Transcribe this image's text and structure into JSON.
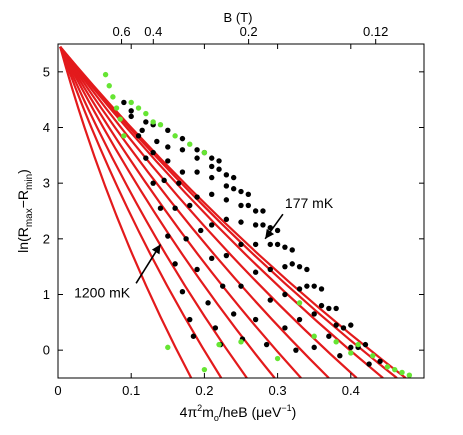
{
  "chart_data": {
    "type": "scatter",
    "xlim": [
      0,
      0.5
    ],
    "ylim": [
      -0.5,
      5.5
    ],
    "xticks": [
      0,
      0.1,
      0.2,
      0.3,
      0.4
    ],
    "xtick_labels": [
      "0",
      "0.1",
      "0.2",
      "0.3",
      "0.4"
    ],
    "yticks": [
      0,
      1,
      2,
      3,
      4,
      5
    ],
    "ytick_labels": [
      "0",
      "1",
      "2",
      "3",
      "4",
      "5"
    ],
    "top_axis_label": "B (T)",
    "top_ticks": [
      {
        "label": "0.6",
        "x": 0.0868
      },
      {
        "label": "0.4",
        "x": 0.1302
      },
      {
        "label": "0.2",
        "x": 0.2604
      },
      {
        "label": "0.12",
        "x": 0.434
      }
    ],
    "xlabel": {
      "pre": "4π",
      "sup1": "2",
      "mid": "m",
      "sub": "o",
      "post": "/heB (μeV",
      "sup2": "−1",
      "close": ")"
    },
    "ylabel": {
      "pre": "ln(R",
      "sub1": "max",
      "mid": "−R",
      "sub2": "min",
      "close": ")"
    },
    "grid": false,
    "origin": [
      0.003,
      5.45
    ],
    "fit_lines": [
      {
        "end": [
          0.182,
          -0.5
        ],
        "color": "#e31a1c"
      },
      {
        "end": [
          0.223,
          -0.5
        ],
        "color": "#e31a1c"
      },
      {
        "end": [
          0.258,
          -0.5
        ],
        "color": "#e31a1c"
      },
      {
        "end": [
          0.296,
          -0.5
        ],
        "color": "#e31a1c"
      },
      {
        "end": [
          0.332,
          -0.5
        ],
        "color": "#e31a1c"
      },
      {
        "end": [
          0.37,
          -0.5
        ],
        "color": "#e31a1c"
      },
      {
        "end": [
          0.408,
          -0.5
        ],
        "color": "#e31a1c"
      },
      {
        "end": [
          0.444,
          -0.5
        ],
        "color": "#e31a1c"
      },
      {
        "end": [
          0.463,
          -0.5
        ],
        "color": "#e31a1c"
      },
      {
        "end": [
          0.475,
          -0.5
        ],
        "color": "#e31a1c"
      }
    ],
    "series": [
      {
        "color": "#000000",
        "points": [
          [
            0.09,
            4.45
          ],
          [
            0.1,
            4.2
          ],
          [
            0.11,
            3.85
          ],
          [
            0.12,
            3.45
          ],
          [
            0.13,
            3.0
          ],
          [
            0.14,
            2.55
          ],
          [
            0.15,
            2.05
          ],
          [
            0.16,
            1.55
          ],
          [
            0.17,
            1.05
          ],
          [
            0.18,
            0.55
          ],
          [
            0.185,
            0.25
          ]
        ]
      },
      {
        "color": "#000000",
        "points": [
          [
            0.1,
            4.3
          ],
          [
            0.115,
            3.95
          ],
          [
            0.13,
            3.55
          ],
          [
            0.145,
            3.05
          ],
          [
            0.16,
            2.55
          ],
          [
            0.175,
            2.0
          ],
          [
            0.19,
            1.45
          ],
          [
            0.205,
            0.85
          ],
          [
            0.215,
            0.4
          ],
          [
            0.222,
            0.1
          ]
        ]
      },
      {
        "color": "#000000",
        "points": [
          [
            0.12,
            4.1
          ],
          [
            0.135,
            3.75
          ],
          [
            0.15,
            3.4
          ],
          [
            0.165,
            3.0
          ],
          [
            0.18,
            2.6
          ],
          [
            0.195,
            2.15
          ],
          [
            0.21,
            1.65
          ],
          [
            0.225,
            1.15
          ],
          [
            0.24,
            0.65
          ],
          [
            0.252,
            0.2
          ]
        ]
      },
      {
        "color": "#000000",
        "points": [
          [
            0.13,
            4.05
          ],
          [
            0.15,
            3.65
          ],
          [
            0.17,
            3.2
          ],
          [
            0.19,
            2.75
          ],
          [
            0.21,
            2.25
          ],
          [
            0.23,
            1.7
          ],
          [
            0.25,
            1.15
          ],
          [
            0.27,
            0.55
          ],
          [
            0.285,
            0.1
          ]
        ]
      },
      {
        "color": "#000000",
        "points": [
          [
            0.15,
            3.95
          ],
          [
            0.17,
            3.6
          ],
          [
            0.19,
            3.2
          ],
          [
            0.21,
            2.8
          ],
          [
            0.23,
            2.35
          ],
          [
            0.25,
            1.9
          ],
          [
            0.27,
            1.4
          ],
          [
            0.29,
            0.9
          ],
          [
            0.31,
            0.4
          ],
          [
            0.325,
            0.0
          ]
        ]
      },
      {
        "color": "#000000",
        "points": [
          [
            0.17,
            3.8
          ],
          [
            0.19,
            3.45
          ],
          [
            0.21,
            3.1
          ],
          [
            0.23,
            2.7
          ],
          [
            0.25,
            2.3
          ],
          [
            0.27,
            1.9
          ],
          [
            0.29,
            1.45
          ],
          [
            0.31,
            1.0
          ],
          [
            0.33,
            0.55
          ],
          [
            0.35,
            0.05
          ]
        ]
      },
      {
        "color": "#000000",
        "points": [
          [
            0.19,
            3.6
          ],
          [
            0.21,
            3.3
          ],
          [
            0.23,
            2.95
          ],
          [
            0.25,
            2.6
          ],
          [
            0.27,
            2.25
          ],
          [
            0.29,
            1.9
          ],
          [
            0.31,
            1.5
          ],
          [
            0.33,
            1.1
          ],
          [
            0.35,
            0.65
          ],
          [
            0.37,
            0.25
          ],
          [
            0.385,
            -0.1
          ]
        ]
      },
      {
        "color": "#000000",
        "points": [
          [
            0.2,
            3.55
          ],
          [
            0.22,
            3.25
          ],
          [
            0.24,
            2.9
          ],
          [
            0.26,
            2.6
          ],
          [
            0.28,
            2.25
          ],
          [
            0.3,
            1.9
          ],
          [
            0.32,
            1.55
          ],
          [
            0.34,
            1.15
          ],
          [
            0.36,
            0.8
          ],
          [
            0.38,
            0.45
          ],
          [
            0.4,
            0.05
          ]
        ]
      },
      {
        "color": "#000000",
        "points": [
          [
            0.21,
            3.45
          ],
          [
            0.23,
            3.15
          ],
          [
            0.25,
            2.85
          ],
          [
            0.27,
            2.5
          ],
          [
            0.29,
            2.2
          ],
          [
            0.31,
            1.85
          ],
          [
            0.33,
            1.5
          ],
          [
            0.35,
            1.15
          ],
          [
            0.37,
            0.75
          ],
          [
            0.39,
            0.4
          ],
          [
            0.41,
            0.05
          ],
          [
            0.425,
            -0.25
          ]
        ]
      },
      {
        "color": "#000000",
        "points": [
          [
            0.22,
            3.4
          ],
          [
            0.24,
            3.1
          ],
          [
            0.26,
            2.8
          ],
          [
            0.28,
            2.5
          ],
          [
            0.3,
            2.15
          ],
          [
            0.32,
            1.8
          ],
          [
            0.34,
            1.45
          ],
          [
            0.36,
            1.1
          ],
          [
            0.38,
            0.75
          ],
          [
            0.4,
            0.45
          ],
          [
            0.42,
            0.1
          ],
          [
            0.44,
            -0.2
          ]
        ]
      },
      {
        "color": "#66e533",
        "points": [
          [
            0.065,
            4.95
          ],
          [
            0.07,
            4.75
          ],
          [
            0.075,
            4.55
          ],
          [
            0.08,
            4.35
          ],
          [
            0.085,
            4.15
          ],
          [
            0.09,
            3.85
          ],
          [
            0.1,
            4.45
          ],
          [
            0.11,
            4.35
          ],
          [
            0.12,
            4.25
          ],
          [
            0.13,
            4.1
          ],
          [
            0.14,
            4.05
          ],
          [
            0.16,
            3.85
          ],
          [
            0.18,
            3.7
          ],
          [
            0.2,
            3.55
          ],
          [
            0.15,
            0.05
          ],
          [
            0.22,
            0.1
          ],
          [
            0.2,
            -0.35
          ],
          [
            0.25,
            0.15
          ],
          [
            0.3,
            -0.15
          ],
          [
            0.33,
            0.85
          ],
          [
            0.35,
            0.25
          ],
          [
            0.38,
            0.15
          ],
          [
            0.4,
            -0.05
          ],
          [
            0.41,
            0.1
          ],
          [
            0.43,
            -0.1
          ],
          [
            0.45,
            -0.3
          ],
          [
            0.46,
            -0.35
          ],
          [
            0.47,
            -0.4
          ],
          [
            0.48,
            -0.45
          ]
        ]
      }
    ],
    "annotations": [
      {
        "text": "177 mK",
        "x": 0.31,
        "y": 2.55,
        "arrow_to": [
          0.283,
          2.0
        ],
        "anchor": "start"
      },
      {
        "text": "1200 mK",
        "x": 0.022,
        "y": 0.95,
        "arrow_to": [
          0.14,
          1.9
        ],
        "anchor": "start"
      }
    ]
  }
}
